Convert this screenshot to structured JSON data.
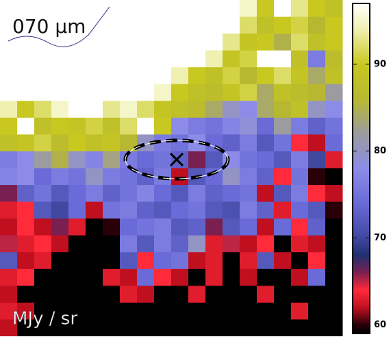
{
  "chart_data": {
    "type": "heatmap",
    "title": "070 μm",
    "colorbar_label": "MJy / sr",
    "zlim": [
      59,
      97
    ],
    "zticks": [
      60,
      70,
      80,
      90
    ],
    "colorscale": [
      {
        "value": 59,
        "color": "#000000"
      },
      {
        "value": 60,
        "color": "#2a0008"
      },
      {
        "value": 62,
        "color": "#c01020"
      },
      {
        "value": 64,
        "color": "#ff2a3a"
      },
      {
        "value": 66,
        "color": "#7a2050"
      },
      {
        "value": 68,
        "color": "#203070"
      },
      {
        "value": 70,
        "color": "#4048a0"
      },
      {
        "value": 74,
        "color": "#6a6ad8"
      },
      {
        "value": 78,
        "color": "#8c8ce8"
      },
      {
        "value": 82,
        "color": "#9c9ca0"
      },
      {
        "value": 86,
        "color": "#b8b830"
      },
      {
        "value": 90,
        "color": "#c8c820"
      },
      {
        "value": 94,
        "color": "#f0f0b0"
      },
      {
        "value": 97,
        "color": "#ffffff"
      }
    ],
    "z": [
      [
        97,
        97,
        97,
        97,
        97,
        97,
        97,
        97,
        97,
        97,
        97,
        97,
        97,
        97,
        95,
        90,
        97,
        93,
        90,
        88
      ],
      [
        97,
        97,
        97,
        97,
        97,
        97,
        97,
        97,
        97,
        97,
        97,
        97,
        97,
        97,
        92,
        88,
        90,
        91,
        86,
        90
      ],
      [
        97,
        97,
        97,
        97,
        97,
        97,
        97,
        97,
        97,
        97,
        97,
        97,
        97,
        93,
        89,
        90,
        85,
        92,
        88,
        90
      ],
      [
        97,
        97,
        97,
        97,
        97,
        97,
        97,
        97,
        97,
        97,
        97,
        97,
        94,
        89,
        91,
        97,
        97,
        88,
        76,
        87
      ],
      [
        97,
        97,
        97,
        97,
        97,
        97,
        97,
        97,
        97,
        97,
        94,
        90,
        88,
        91,
        86,
        90,
        92,
        89,
        84,
        88
      ],
      [
        97,
        97,
        97,
        97,
        97,
        97,
        97,
        97,
        97,
        95,
        90,
        88,
        87,
        89,
        91,
        84,
        88,
        87,
        86,
        82
      ],
      [
        94,
        90,
        92,
        95,
        97,
        97,
        93,
        95,
        92,
        89,
        88,
        87,
        84,
        80,
        78,
        84,
        86,
        88,
        80,
        78
      ],
      [
        90,
        97,
        88,
        90,
        89,
        91,
        88,
        92,
        97,
        90,
        78,
        76,
        75,
        77,
        79,
        74,
        82,
        76,
        73,
        75
      ],
      [
        88,
        89,
        91,
        87,
        90,
        88,
        89,
        86,
        80,
        76,
        75,
        78,
        74,
        73,
        76,
        72,
        75,
        64,
        62,
        74
      ],
      [
        76,
        78,
        82,
        85,
        80,
        77,
        83,
        76,
        74,
        75,
        73,
        66,
        72,
        78,
        75,
        74,
        72,
        76,
        70,
        63
      ],
      [
        77,
        78,
        74,
        76,
        75,
        80,
        76,
        75,
        73,
        76,
        62,
        72,
        74,
        80,
        76,
        73,
        64,
        75,
        60,
        59
      ],
      [
        66,
        73,
        75,
        72,
        74,
        76,
        73,
        75,
        77,
        74,
        72,
        76,
        73,
        74,
        75,
        62,
        72,
        76,
        64,
        62
      ],
      [
        63,
        64,
        72,
        70,
        74,
        62,
        75,
        76,
        73,
        72,
        74,
        75,
        72,
        71,
        76,
        73,
        63,
        74,
        72,
        60
      ],
      [
        62,
        64,
        62,
        66,
        63,
        59,
        60,
        74,
        75,
        76,
        72,
        73,
        66,
        72,
        74,
        62,
        74,
        64,
        73,
        59
      ],
      [
        65,
        63,
        64,
        62,
        59,
        59,
        59,
        76,
        72,
        76,
        73,
        80,
        63,
        65,
        62,
        64,
        59,
        63,
        62,
        59
      ],
      [
        72,
        62,
        63,
        59,
        59,
        59,
        59,
        72,
        64,
        74,
        75,
        62,
        63,
        59,
        63,
        72,
        62,
        59,
        64,
        59
      ],
      [
        63,
        64,
        59,
        59,
        59,
        59,
        63,
        62,
        74,
        64,
        62,
        59,
        63,
        59,
        62,
        59,
        59,
        62,
        74,
        59
      ],
      [
        62,
        59,
        59,
        59,
        59,
        59,
        59,
        63,
        62,
        59,
        59,
        63,
        59,
        59,
        59,
        63,
        59,
        59,
        59,
        59
      ],
      [
        63,
        62,
        59,
        59,
        59,
        59,
        59,
        59,
        59,
        59,
        59,
        59,
        59,
        59,
        59,
        59,
        59,
        63,
        59,
        59
      ],
      [
        62,
        59,
        59,
        59,
        59,
        59,
        59,
        59,
        59,
        59,
        59,
        59,
        59,
        59,
        59,
        59,
        59,
        59,
        59,
        59
      ]
    ]
  }
}
